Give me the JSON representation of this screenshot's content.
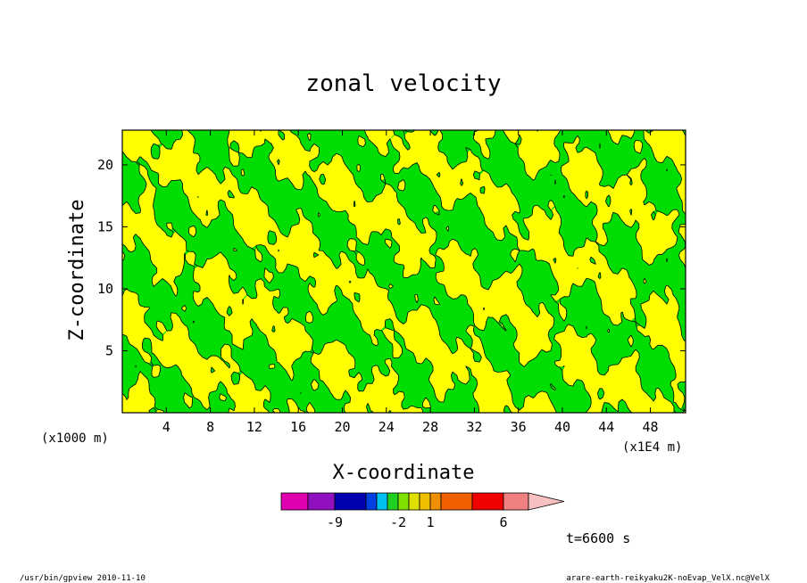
{
  "chart_data": {
    "type": "heatmap",
    "title": "zonal velocity",
    "xlabel": "X-coordinate",
    "ylabel": "Z-coordinate",
    "x_unit_left": "(x1000 m)",
    "x_unit_right": "(x1E4 m)",
    "x_ticks": [
      4,
      8,
      12,
      16,
      20,
      24,
      28,
      32,
      36,
      40,
      44,
      48
    ],
    "y_ticks": [
      5,
      10,
      15,
      20
    ],
    "xlim": [
      0,
      51.2
    ],
    "ylim": [
      0,
      22.8
    ],
    "colorbar_labels": [
      {
        "level_index": 2,
        "text": "-9"
      },
      {
        "level_index": 6,
        "text": "-2"
      },
      {
        "level_index": 9,
        "text": "1"
      },
      {
        "level_index": 12,
        "text": "6"
      }
    ],
    "colorbar_colors": [
      "#e000b0",
      "#9010c0",
      "#0000b0",
      "#0040e0",
      "#00c0f0",
      "#20d020",
      "#80e000",
      "#e0e000",
      "#f0c000",
      "#f09000",
      "#f06000",
      "#f00000",
      "#f08080",
      "#f8c0c0"
    ],
    "field_colors": {
      "negative": "#00dd00",
      "positive": "#ffff00",
      "contour": "#000000"
    },
    "time_label": "t=6600 s"
  },
  "footer": {
    "left": "/usr/bin/gpview 2010-11-10",
    "right": "arare-earth-reikyaku2K-noEvap_VelX.nc@VelX"
  }
}
